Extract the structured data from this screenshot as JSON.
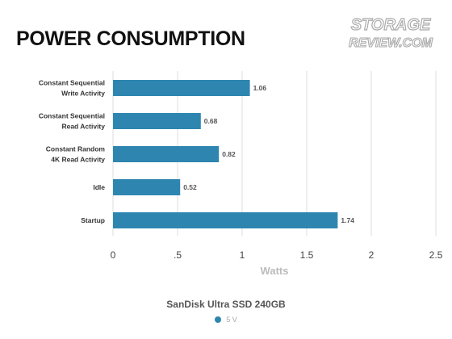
{
  "page": {
    "title": "POWER CONSUMPTION",
    "logo_text_top": "STORAGE",
    "logo_text_bottom": "REVIEW.COM"
  },
  "colors": {
    "bar": "#2e86b0",
    "gridline": "#dddddd"
  },
  "chart_data": {
    "type": "bar",
    "orientation": "horizontal",
    "subtitle": "SanDisk Ultra SSD 240GB",
    "xlabel": "Watts",
    "ylabel": "",
    "xlim": [
      0,
      2.5
    ],
    "xticks": [
      {
        "value": 0,
        "label": "0"
      },
      {
        "value": 0.5,
        "label": ".5"
      },
      {
        "value": 1,
        "label": "1"
      },
      {
        "value": 1.5,
        "label": "1.5"
      },
      {
        "value": 2,
        "label": "2"
      },
      {
        "value": 2.5,
        "label": "2.5"
      }
    ],
    "grid": "vertical",
    "legend_position": "bottom",
    "categories": [
      [
        "Constant Sequential",
        "Write Activity"
      ],
      [
        "Constant Sequential",
        "Read Activity"
      ],
      [
        "Constant Random",
        "4K Read Activity"
      ],
      [
        "Idle"
      ],
      [
        "Startup"
      ]
    ],
    "series": [
      {
        "name": "5 V",
        "values": [
          1.06,
          0.68,
          0.82,
          0.52,
          1.74
        ],
        "value_labels": [
          "1.06",
          "0.68",
          "0.82",
          "0.52",
          "1.74"
        ]
      }
    ]
  }
}
